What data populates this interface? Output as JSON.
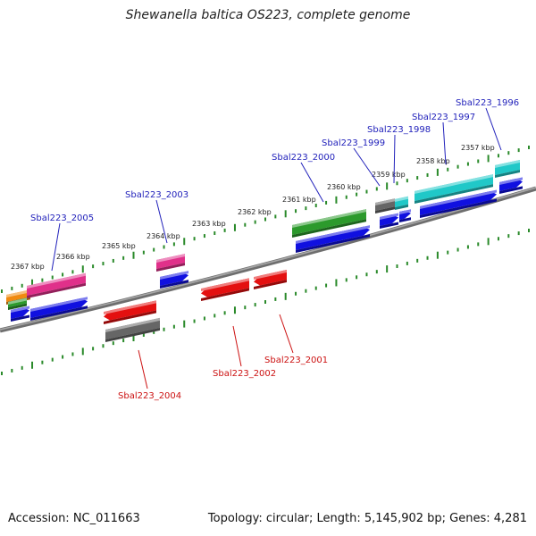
{
  "title": "Shewanella baltica OS223, complete genome",
  "footer": {
    "accession": "Accession: NC_011663",
    "summary": "Topology: circular; Length: 5,145,902 bp; Genes: 4,281"
  },
  "colors": {
    "backbone": "#8a8a8a",
    "tick": "#2a8a2a",
    "upper_label": "#2222bb",
    "lower_label": "#cc1111",
    "cds_blue": "#1010e0",
    "red": "#e41010",
    "gray": "#666666",
    "magenta": "#e0308a",
    "green": "#2c9a2c",
    "cyan": "#20c8c8",
    "orange": "#f08a10"
  },
  "ticks": [
    {
      "label": "2357 kbp"
    },
    {
      "label": "2358 kbp"
    },
    {
      "label": "2359 kbp"
    },
    {
      "label": "2360 kbp"
    },
    {
      "label": "2361 kbp"
    },
    {
      "label": "2362 kbp"
    },
    {
      "label": "2363 kbp"
    },
    {
      "label": "2364 kbp"
    },
    {
      "label": "2365 kbp"
    },
    {
      "label": "2366 kbp"
    },
    {
      "label": "2367 kbp"
    }
  ],
  "upper_genes": [
    {
      "label": "Sbal223_1996"
    },
    {
      "label": "Sbal223_1997"
    },
    {
      "label": "Sbal223_1998"
    },
    {
      "label": "Sbal223_1999"
    },
    {
      "label": "Sbal223_2000"
    },
    {
      "label": "Sbal223_2003"
    },
    {
      "label": "Sbal223_2005"
    }
  ],
  "lower_genes": [
    {
      "label": "Sbal223_2001"
    },
    {
      "label": "Sbal223_2002"
    },
    {
      "label": "Sbal223_2004"
    }
  ]
}
